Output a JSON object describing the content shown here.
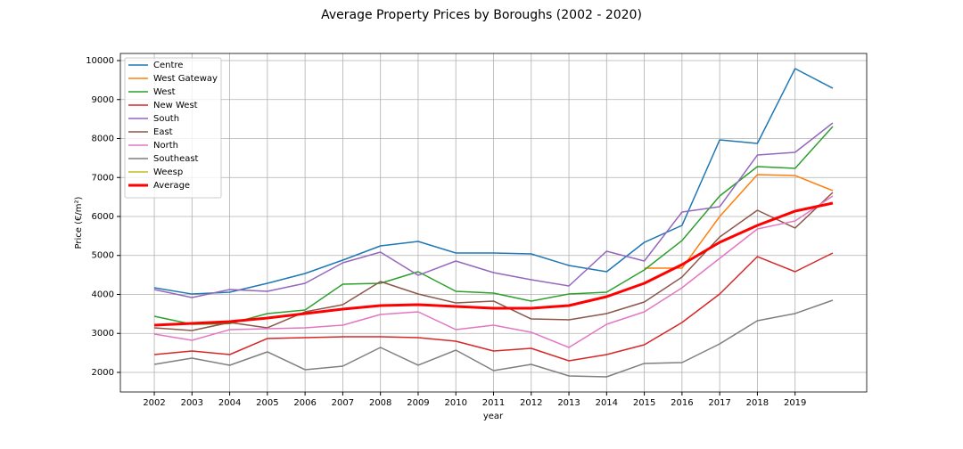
{
  "chart_data": {
    "type": "line",
    "title": "Average Property Prices by Boroughs (2002 - 2020)",
    "xlabel": "year",
    "ylabel": "Price (€/m²)",
    "x": [
      2002,
      2003,
      2004,
      2005,
      2006,
      2007,
      2008,
      2009,
      2010,
      2011,
      2012,
      2013,
      2014,
      2015,
      2016,
      2017,
      2018,
      2019,
      2020
    ],
    "xlim": [
      2001.1,
      2020.9
    ],
    "xticks": [
      2002,
      2003,
      2004,
      2005,
      2006,
      2007,
      2008,
      2009,
      2010,
      2011,
      2012,
      2013,
      2014,
      2015,
      2016,
      2017,
      2018,
      2019
    ],
    "ylim": [
      1497,
      10183
    ],
    "yticks": [
      2000,
      3000,
      4000,
      5000,
      6000,
      7000,
      8000,
      9000,
      10000
    ],
    "grid": true,
    "legend": "upper left",
    "series": [
      {
        "name": "Centre",
        "color": "#1f77b4",
        "values": [
          4171,
          4010,
          4057,
          4285,
          4537,
          4880,
          5246,
          5360,
          5063,
          5063,
          5040,
          4743,
          4583,
          5337,
          5771,
          7966,
          7874,
          9794,
          9291
        ]
      },
      {
        "name": "West Gateway",
        "color": "#ff7f0e",
        "values": [
          null,
          null,
          null,
          null,
          null,
          null,
          null,
          null,
          null,
          null,
          null,
          null,
          null,
          4674,
          4674,
          6000,
          7074,
          7051,
          6663
        ]
      },
      {
        "name": "West",
        "color": "#2ca02c",
        "values": [
          3440,
          3234,
          3250,
          3509,
          3600,
          4263,
          4286,
          4583,
          4080,
          4034,
          3829,
          4011,
          4057,
          4629,
          5383,
          6526,
          7280,
          7234,
          8309
        ]
      },
      {
        "name": "New West",
        "color": "#d62728",
        "values": [
          2457,
          2549,
          2457,
          2869,
          2891,
          2914,
          2914,
          2891,
          2800,
          2549,
          2617,
          2297,
          2457,
          2709,
          3280,
          4011,
          4971,
          4583,
          5063
        ]
      },
      {
        "name": "South",
        "color": "#9467bd",
        "values": [
          4126,
          3920,
          4126,
          4080,
          4286,
          4811,
          5086,
          4491,
          4857,
          4560,
          4377,
          4217,
          5109,
          4857,
          6114,
          6251,
          7577,
          7646,
          8400
        ]
      },
      {
        "name": "East",
        "color": "#8c564b",
        "values": [
          3143,
          3074,
          3280,
          3143,
          3554,
          3737,
          4331,
          4011,
          3783,
          3829,
          3371,
          3349,
          3509,
          3806,
          4446,
          5474,
          6160,
          5703,
          6617
        ]
      },
      {
        "name": "North",
        "color": "#e377c2",
        "values": [
          2983,
          2823,
          3097,
          3120,
          3143,
          3211,
          3486,
          3554,
          3097,
          3211,
          3029,
          2640,
          3234,
          3554,
          4171,
          4926,
          5680,
          5886,
          6526
        ]
      },
      {
        "name": "Southeast",
        "color": "#7f7f7f",
        "values": [
          2206,
          2366,
          2183,
          2526,
          2069,
          2160,
          2640,
          2183,
          2571,
          2046,
          2206,
          1909,
          1886,
          2229,
          2251,
          2731,
          3326,
          3509,
          3851
        ]
      },
      {
        "name": "Weesp",
        "color": "#bcbd22",
        "values": [
          null,
          null,
          null,
          null,
          null,
          null,
          null,
          null,
          null,
          null,
          null,
          null,
          null,
          null,
          null,
          null,
          null,
          null,
          null
        ]
      },
      {
        "name": "Average",
        "color": "#ff0000",
        "linewidth": 3,
        "values": [
          3211,
          3257,
          3303,
          3394,
          3509,
          3623,
          3714,
          3737,
          3691,
          3646,
          3646,
          3714,
          3943,
          4286,
          4766,
          5337,
          5771,
          6137,
          6343
        ]
      }
    ]
  }
}
